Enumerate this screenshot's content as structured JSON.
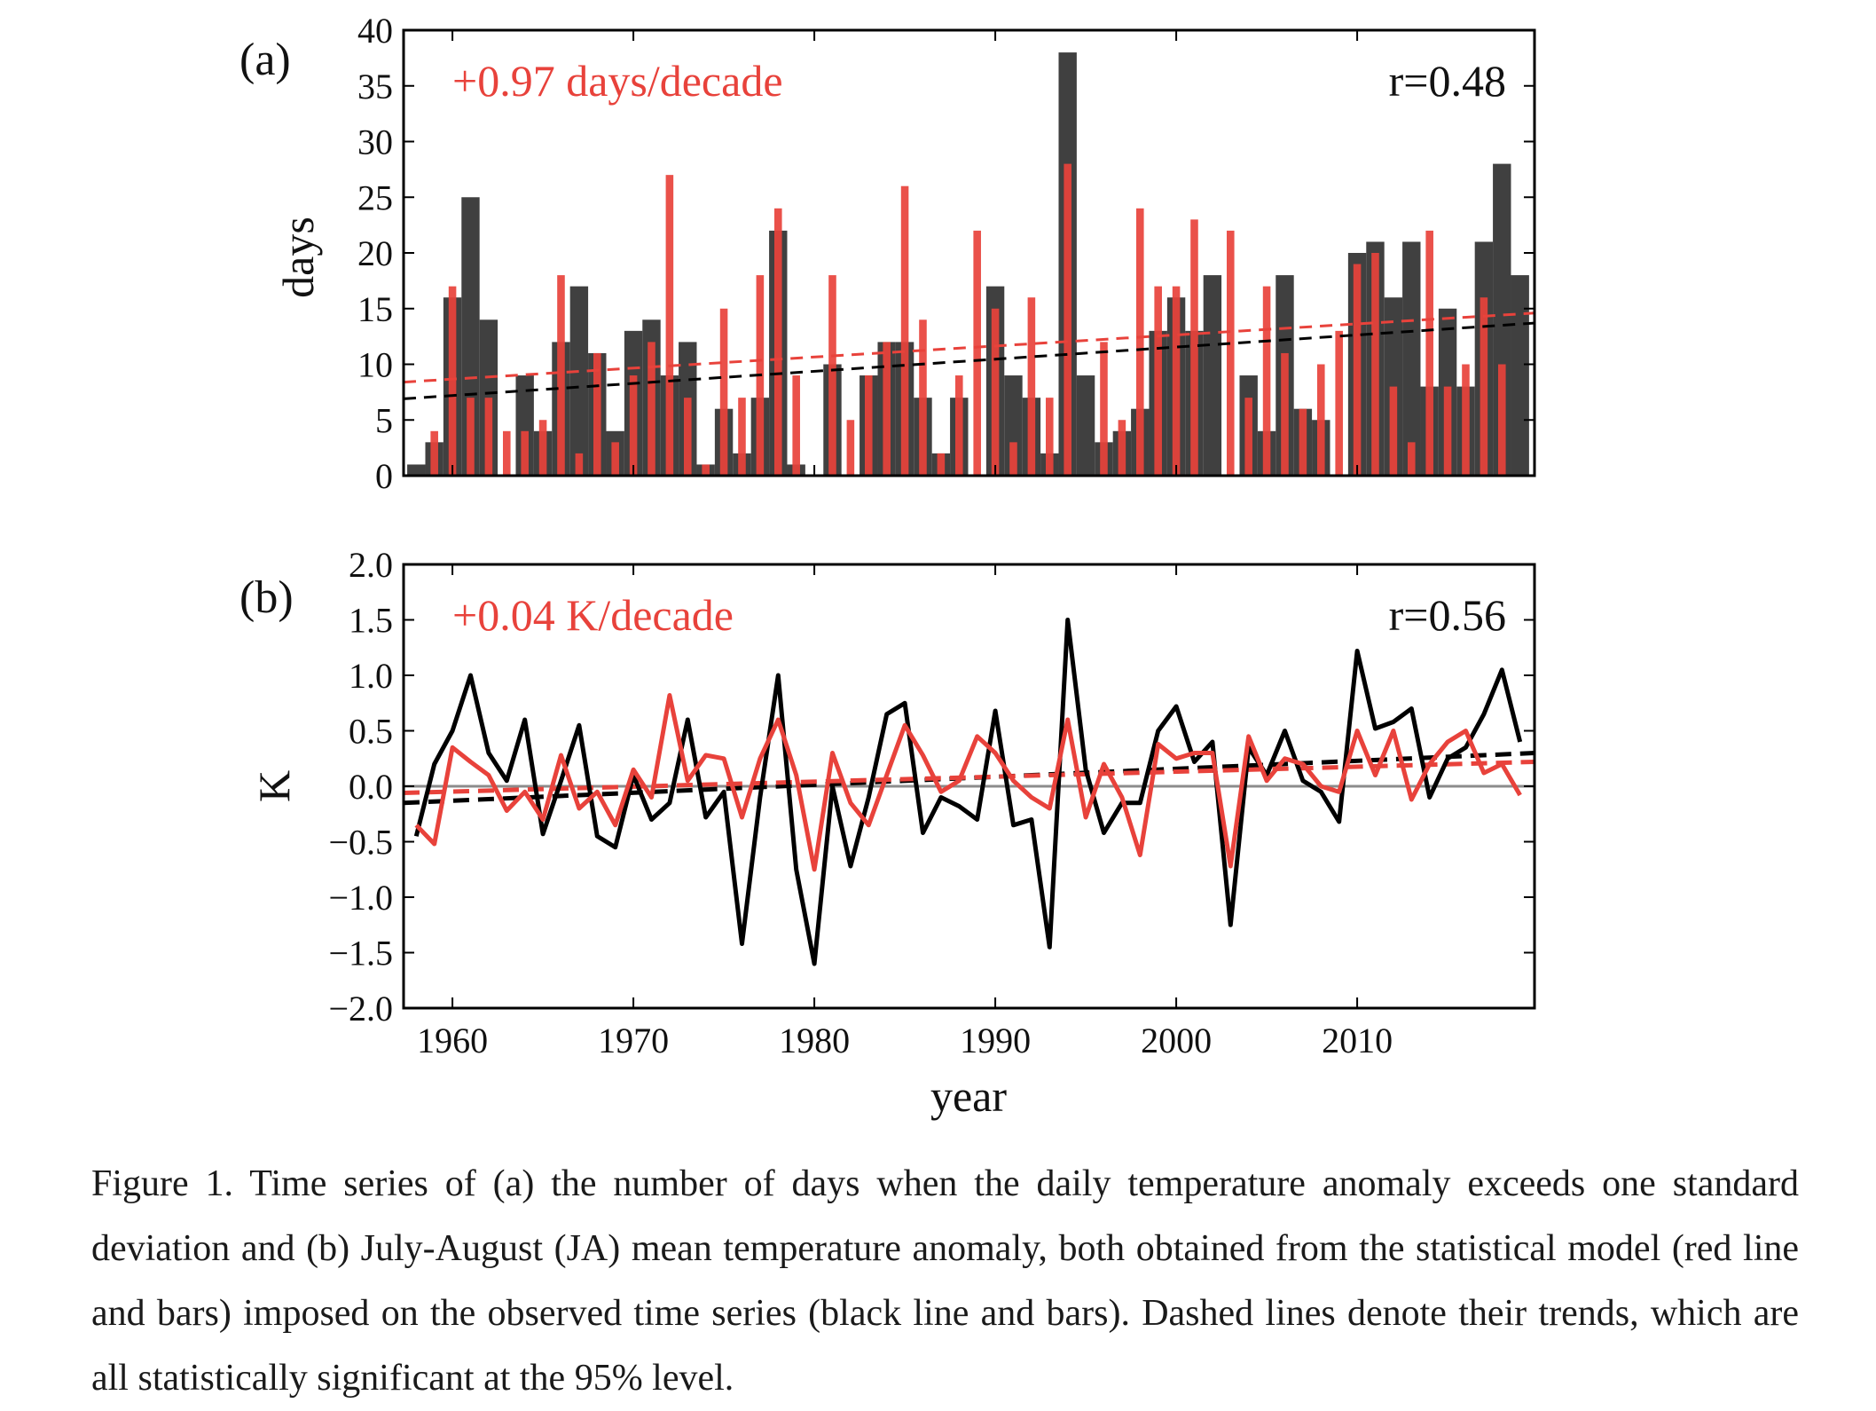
{
  "chart_data": [
    {
      "type": "bar",
      "panel_label": "(a)",
      "ylabel": "days",
      "ylim": [
        0,
        40
      ],
      "yticks": [
        "0",
        "5",
        "10",
        "15",
        "20",
        "25",
        "30",
        "35",
        "40"
      ],
      "xlim": [
        1957.3,
        2019.8
      ],
      "xticks": [
        1960,
        1970,
        1980,
        1990,
        2000,
        2010
      ],
      "trend_text": "+0.97 days/decade",
      "r_text": "r=0.48",
      "years": [
        1958,
        1959,
        1960,
        1961,
        1962,
        1963,
        1964,
        1965,
        1966,
        1967,
        1968,
        1969,
        1970,
        1971,
        1972,
        1973,
        1974,
        1975,
        1976,
        1977,
        1978,
        1979,
        1980,
        1981,
        1982,
        1983,
        1984,
        1985,
        1986,
        1987,
        1988,
        1989,
        1990,
        1991,
        1992,
        1993,
        1994,
        1995,
        1996,
        1997,
        1998,
        1999,
        2000,
        2001,
        2002,
        2003,
        2004,
        2005,
        2006,
        2007,
        2008,
        2009,
        2010,
        2011,
        2012,
        2013,
        2014,
        2015,
        2016,
        2017,
        2018,
        2019
      ],
      "series": [
        {
          "name": "observed",
          "color": "#404040",
          "values": [
            1,
            3,
            16,
            25,
            14,
            0,
            9,
            4,
            12,
            17,
            11,
            4,
            13,
            14,
            9,
            12,
            1,
            6,
            2,
            7,
            22,
            1,
            0,
            10,
            0,
            9,
            12,
            12,
            7,
            2,
            7,
            0,
            17,
            9,
            7,
            2,
            38,
            9,
            3,
            4,
            6,
            13,
            16,
            13,
            18,
            0,
            9,
            4,
            18,
            6,
            5,
            0,
            20,
            21,
            16,
            21,
            8,
            15,
            8,
            21,
            28,
            18
          ]
        },
        {
          "name": "statistical model",
          "color": "#e8423b",
          "values": [
            0,
            4,
            17,
            7,
            7,
            4,
            4,
            5,
            18,
            2,
            11,
            3,
            9,
            12,
            27,
            7,
            1,
            15,
            7,
            18,
            24,
            9,
            0,
            18,
            5,
            9,
            12,
            26,
            14,
            2,
            9,
            22,
            15,
            3,
            16,
            7,
            28,
            0,
            12,
            5,
            24,
            17,
            17,
            23,
            0,
            22,
            7,
            17,
            11,
            6,
            10,
            13,
            19,
            20,
            8,
            3,
            22,
            8,
            10,
            16,
            10,
            0
          ]
        }
      ],
      "trends": [
        {
          "name": "observed trend",
          "color": "#000000",
          "start": [
            1957.3,
            6.9
          ],
          "end": [
            2019.8,
            13.7
          ]
        },
        {
          "name": "model trend",
          "color": "#e8423b",
          "start": [
            1957.3,
            8.4
          ],
          "end": [
            2019.8,
            14.6
          ]
        }
      ]
    },
    {
      "type": "line",
      "panel_label": "(b)",
      "ylabel": "K",
      "xlabel": "year",
      "ylim": [
        -2.0,
        2.0
      ],
      "yticks": [
        "−2.0",
        "−1.5",
        "−1.0",
        "−0.5",
        "0.0",
        "0.5",
        "1.0",
        "1.5",
        "2.0"
      ],
      "xlim": [
        1957.3,
        2019.8
      ],
      "xticks": [
        1960,
        1970,
        1980,
        1990,
        2000,
        2010
      ],
      "trend_text": "+0.04 K/decade",
      "r_text": "r=0.56",
      "years": [
        1958,
        1959,
        1960,
        1961,
        1962,
        1963,
        1964,
        1965,
        1966,
        1967,
        1968,
        1969,
        1970,
        1971,
        1972,
        1973,
        1974,
        1975,
        1976,
        1977,
        1978,
        1979,
        1980,
        1981,
        1982,
        1983,
        1984,
        1985,
        1986,
        1987,
        1988,
        1989,
        1990,
        1991,
        1992,
        1993,
        1994,
        1995,
        1996,
        1997,
        1998,
        1999,
        2000,
        2001,
        2002,
        2003,
        2004,
        2005,
        2006,
        2007,
        2008,
        2009,
        2010,
        2011,
        2012,
        2013,
        2014,
        2015,
        2016,
        2017,
        2018,
        2019
      ],
      "series": [
        {
          "name": "observed",
          "color": "#000000",
          "values": [
            -0.45,
            0.2,
            0.5,
            1.0,
            0.3,
            0.05,
            0.6,
            -0.43,
            0.05,
            0.55,
            -0.45,
            -0.55,
            0.1,
            -0.3,
            -0.15,
            0.6,
            -0.28,
            -0.05,
            -1.42,
            -0.1,
            1.0,
            -0.75,
            -1.6,
            0.0,
            -0.72,
            -0.1,
            0.65,
            0.75,
            -0.42,
            -0.1,
            -0.18,
            -0.3,
            0.68,
            -0.35,
            -0.3,
            -1.45,
            1.5,
            0.15,
            -0.42,
            -0.15,
            -0.15,
            0.5,
            0.72,
            0.22,
            0.4,
            -1.25,
            0.35,
            0.1,
            0.5,
            0.05,
            -0.05,
            -0.32,
            1.22,
            0.52,
            0.58,
            0.7,
            -0.1,
            0.25,
            0.35,
            0.65,
            1.05,
            0.4
          ]
        },
        {
          "name": "statistical model",
          "color": "#e8423b",
          "values": [
            -0.35,
            -0.52,
            0.35,
            0.22,
            0.1,
            -0.22,
            -0.05,
            -0.3,
            0.28,
            -0.2,
            -0.05,
            -0.35,
            0.15,
            -0.1,
            0.82,
            0.05,
            0.28,
            0.25,
            -0.28,
            0.25,
            0.6,
            0.1,
            -0.75,
            0.3,
            -0.15,
            -0.35,
            0.1,
            0.55,
            0.28,
            -0.05,
            0.05,
            0.45,
            0.3,
            0.05,
            -0.1,
            -0.2,
            0.6,
            -0.28,
            0.2,
            -0.1,
            -0.62,
            0.38,
            0.25,
            0.3,
            0.3,
            -0.72,
            0.45,
            0.05,
            0.25,
            0.2,
            0.0,
            -0.05,
            0.5,
            0.1,
            0.5,
            -0.12,
            0.2,
            0.4,
            0.5,
            0.12,
            0.2,
            -0.08
          ]
        }
      ],
      "trends": [
        {
          "name": "observed trend",
          "color": "#000000",
          "start": [
            1957.3,
            -0.15
          ],
          "end": [
            2019.8,
            0.3
          ]
        },
        {
          "name": "model trend",
          "color": "#e8423b",
          "start": [
            1957.3,
            -0.06
          ],
          "end": [
            2019.8,
            0.22
          ]
        }
      ],
      "zero_line_color": "#8c8c8c"
    }
  ],
  "caption": "Figure 1. Time series of (a) the number of days when the daily temperature anomaly exceeds one standard deviation and (b) July-August (JA) mean temperature anomaly, both obtained from the statistical model (red line and bars) imposed on the observed time series (black line and bars). Dashed lines denote their trends, which are all statistically significant at the 95% level."
}
